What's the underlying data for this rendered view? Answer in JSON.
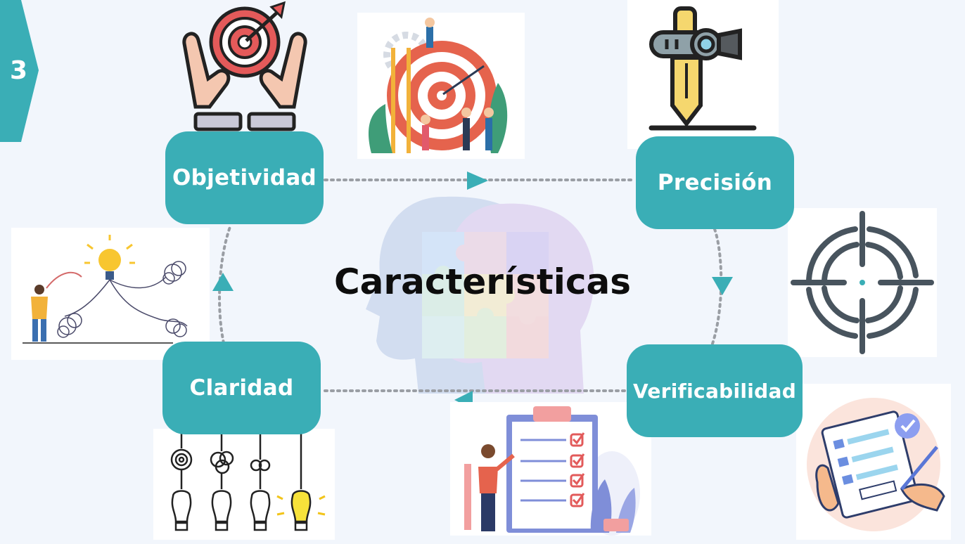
{
  "slide_number": "3",
  "center_title": "Características",
  "nodes": {
    "objetividad": "Objetividad",
    "precision": "Precisión",
    "verificabilidad": "Verificabilidad",
    "claridad": "Claridad"
  },
  "colors": {
    "accent": "#3aaeb6",
    "background": "#f2f6fc",
    "title": "#0d0d0d"
  },
  "icons": [
    "hands-target-icon",
    "team-target-icon",
    "pen-tool-icon",
    "crosshair-icon",
    "checklist-person-icon",
    "completed-form-icon",
    "bulbs-icon",
    "idea-person-icon",
    "puzzle-heads-icon"
  ]
}
